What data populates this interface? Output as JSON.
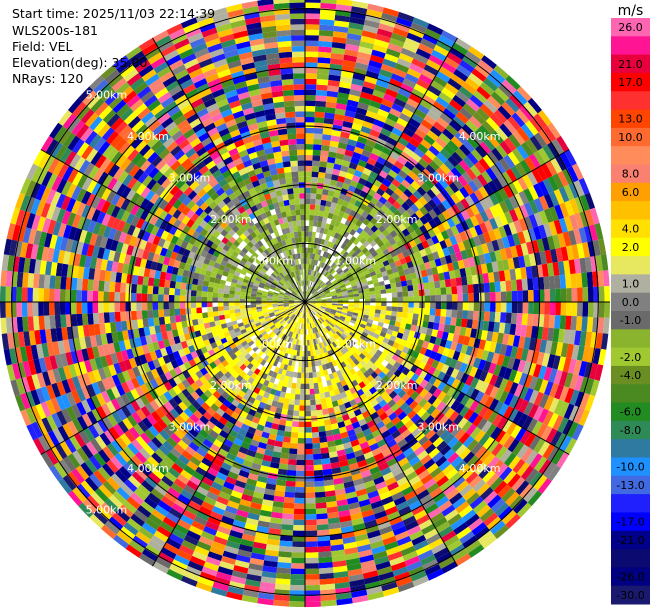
{
  "header": {
    "start_time": "Start time: 2025/11/03 22:14:39",
    "instrument": "WLS200s-181",
    "field": "Field: VEL",
    "elevation": "Elevation(deg): 35.00",
    "nrays": "NRays: 120"
  },
  "chart_data": {
    "type": "heatmap",
    "projection": "polar-ppi",
    "field": "VEL",
    "unit": "m/s",
    "elevation_deg": 35.0,
    "n_rays": 120,
    "range_km": [
      0,
      5.2
    ],
    "range_rings_km": [
      1,
      2,
      3,
      4,
      5
    ],
    "ring_labels": [
      "1.00km",
      "2.00km",
      "3.00km",
      "4.00km",
      "5.00km"
    ],
    "spokes_deg": [
      0,
      30,
      60,
      90,
      120,
      150,
      180,
      210,
      240,
      270,
      300,
      330
    ],
    "value_range": [
      -30,
      30
    ],
    "pattern": {
      "inner_north_range_km": 1.7,
      "inner_north_dominant_ms": -1.5,
      "inner_south_range_km": 1.6,
      "inner_south_dominant_ms": 3.5,
      "outer": "noisy"
    }
  },
  "colorbar": {
    "unit": "m/s",
    "levels": [
      {
        "label": "26.0",
        "color": "#ff66b2"
      },
      {
        "label": "",
        "color": "#ff1493"
      },
      {
        "label": "21.0",
        "color": "#e8003c"
      },
      {
        "label": "17.0",
        "color": "#ff0000"
      },
      {
        "label": "",
        "color": "#ff3030"
      },
      {
        "label": "13.0",
        "color": "#ff4500"
      },
      {
        "label": "10.0",
        "color": "#ff6a30"
      },
      {
        "label": "",
        "color": "#ff8c5a"
      },
      {
        "label": "8.0",
        "color": "#fa8070"
      },
      {
        "label": "6.0",
        "color": "#ffa000"
      },
      {
        "label": "",
        "color": "#ffc000"
      },
      {
        "label": "4.0",
        "color": "#ffe000"
      },
      {
        "label": "2.0",
        "color": "#ffff00"
      },
      {
        "label": "",
        "color": "#e8e860"
      },
      {
        "label": "1.0",
        "color": "#b0b0a0"
      },
      {
        "label": "0.0",
        "color": "#808080"
      },
      {
        "label": "-1.0",
        "color": "#6a6a6a"
      },
      {
        "label": "",
        "color": "#8ab42e"
      },
      {
        "label": "-2.0",
        "color": "#a0c830"
      },
      {
        "label": "-4.0",
        "color": "#6b8e23"
      },
      {
        "label": "",
        "color": "#4a8a20"
      },
      {
        "label": "-6.0",
        "color": "#228b22"
      },
      {
        "label": "-8.0",
        "color": "#2e8b57"
      },
      {
        "label": "",
        "color": "#2e7aa0"
      },
      {
        "label": "-10.0",
        "color": "#1e90ff"
      },
      {
        "label": "-13.0",
        "color": "#4169e1"
      },
      {
        "label": "",
        "color": "#2020ff"
      },
      {
        "label": "-17.0",
        "color": "#0000ff"
      },
      {
        "label": "-21.0",
        "color": "#00008b"
      },
      {
        "label": "",
        "color": "#0a0a70"
      },
      {
        "label": "-26.0",
        "color": "#000080"
      },
      {
        "label": "-30.0",
        "color": "#191970"
      }
    ]
  }
}
